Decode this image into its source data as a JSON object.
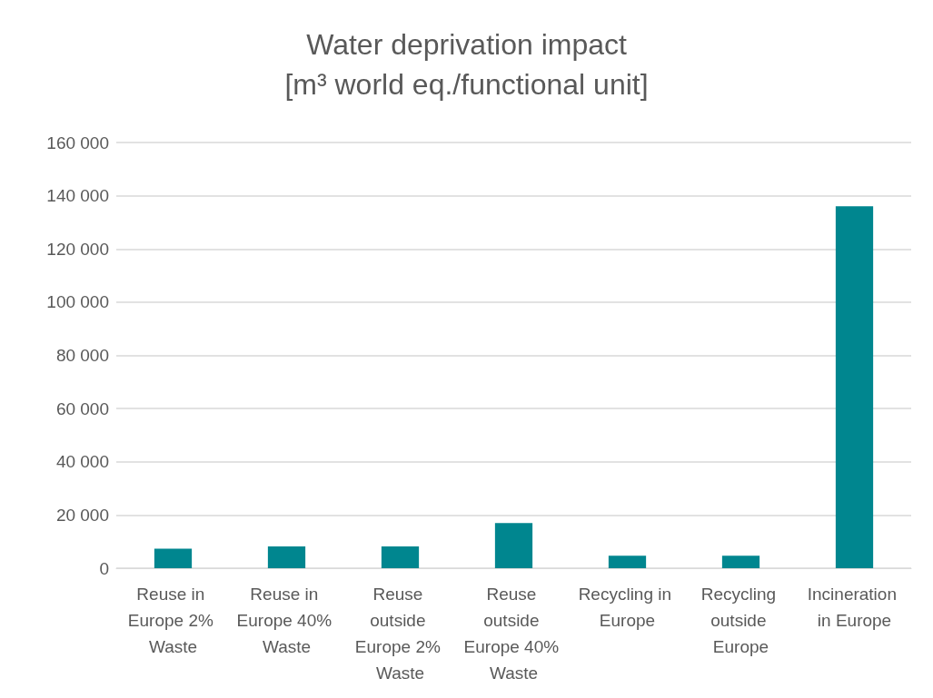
{
  "chart_data": {
    "type": "bar",
    "title": "Water deprivation impact",
    "subtitle": "[m³ world eq./functional unit]",
    "categories": [
      "Reuse in Europe 2% Waste",
      "Reuse in Europe 40% Waste",
      "Reuse outside Europe 2% Waste",
      "Reuse outside Europe 40% Waste",
      "Recycling in Europe",
      "Recycling outside Europe",
      "Incineration in Europe"
    ],
    "values": [
      7300,
      8200,
      8200,
      17000,
      4700,
      4700,
      136000
    ],
    "color": "#00868f",
    "ylim": [
      0,
      160000
    ],
    "yticks": [
      {
        "value": 0,
        "label": "0"
      },
      {
        "value": 20000,
        "label": "20 000"
      },
      {
        "value": 40000,
        "label": "40 000"
      },
      {
        "value": 60000,
        "label": "60 000"
      },
      {
        "value": 80000,
        "label": "80 000"
      },
      {
        "value": 100000,
        "label": "100 000"
      },
      {
        "value": 120000,
        "label": "120 000"
      },
      {
        "value": 140000,
        "label": "140 000"
      },
      {
        "value": 160000,
        "label": "160 000"
      }
    ],
    "grid": "y"
  }
}
